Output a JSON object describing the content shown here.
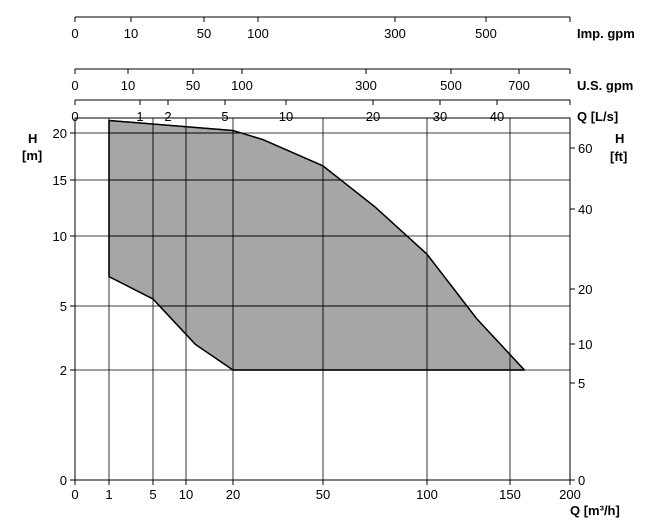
{
  "chart_data": {
    "type": "area",
    "title": "",
    "xlabel": "Q [m³/h]",
    "ylabel_left_line1": "H",
    "ylabel_left_line2": "[m]",
    "ylabel_right_line1": "H",
    "ylabel_right_line2": "[ft]",
    "x_scale": "log-like",
    "xlim": [
      0,
      200
    ],
    "x_ticks": [
      0,
      1,
      5,
      10,
      20,
      50,
      100,
      150,
      200
    ],
    "x_grid": [
      1,
      5,
      10,
      20,
      50,
      100,
      150
    ],
    "y_scale": "log-like",
    "y_ticks_left": [
      0,
      2,
      5,
      10,
      15,
      20
    ],
    "y_ticks_right": [
      0,
      5,
      10,
      20,
      40,
      60
    ],
    "grid": true,
    "top_scales": [
      {
        "label": "Imp. gpm",
        "ticks": [
          0,
          10,
          50,
          100,
          300,
          500
        ]
      },
      {
        "label": "U.S. gpm",
        "ticks": [
          0,
          10,
          50,
          100,
          300,
          500,
          700
        ]
      },
      {
        "label": "Q [L/s]",
        "ticks": [
          0,
          1,
          2,
          5,
          10,
          20,
          30,
          40
        ]
      }
    ],
    "series": [
      {
        "color": "#a6a6a6",
        "points": [
          {
            "q": 1,
            "h": 21.0
          },
          {
            "q": 20,
            "h": 20.2
          },
          {
            "q": 30,
            "h": 19.3
          },
          {
            "q": 50,
            "h": 16.5
          },
          {
            "q": 75,
            "h": 12.6
          },
          {
            "q": 100,
            "h": 8.7
          },
          {
            "q": 130,
            "h": 4.4
          },
          {
            "q": 162,
            "h": 2.0
          },
          {
            "q": 20,
            "h": 2.0
          },
          {
            "q": 12,
            "h": 3.2
          },
          {
            "q": 5,
            "h": 5.5
          },
          {
            "q": 1,
            "h": 7.1
          }
        ]
      }
    ]
  }
}
